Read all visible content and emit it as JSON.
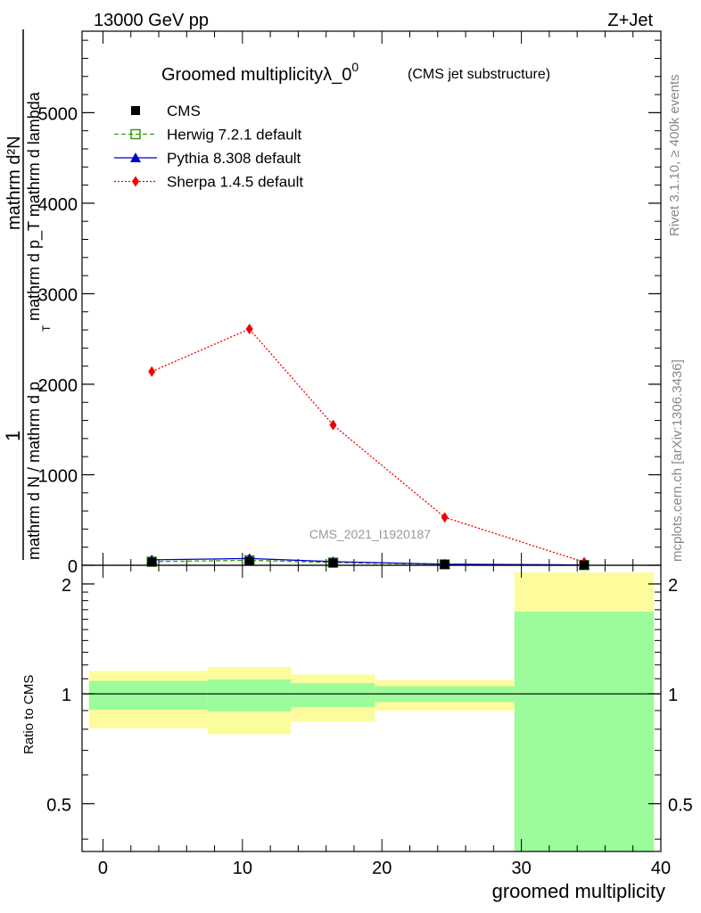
{
  "header": {
    "energy": "13000 GeV pp",
    "process": "Z+Jet",
    "title_main": "Groomed multiplicityλ_0",
    "title_sup": "0",
    "title_sub": "(CMS jet substructure)",
    "rivet_label": "Rivet 3.1.10, ≥ 400k events",
    "site_label": "mcplots.cern.ch [arXiv:1306.3436]",
    "watermark": "CMS_2021_I1920187"
  },
  "chart_data": [
    {
      "type": "scatter",
      "title": "Groomed multiplicityλ_0^0 (CMS jet substructure)",
      "ylabel_num": "1",
      "ylabel_den_top": "mathrm d N / mathrm d p_T",
      "ylabel_den_text": "mathrm d N / mathrm d p",
      "ylabel_den_sub": "T",
      "ylabel_num_text": "mathrm d²N",
      "ylabel_num_full": "mathrm d p_T mathrm d lambda",
      "ylim": [
        0,
        5900
      ],
      "yticks": [
        0,
        1000,
        2000,
        3000,
        4000,
        5000
      ],
      "yticklabels": [
        "0",
        "1000",
        "2000",
        "3000",
        "4000",
        "5000"
      ],
      "xlim": [
        -1.5,
        40
      ],
      "bins": [
        [
          -1,
          7.5
        ],
        [
          7.5,
          13.5
        ],
        [
          13.5,
          19.5
        ],
        [
          19.5,
          29.5
        ],
        [
          29.5,
          39.5
        ]
      ],
      "x": [
        3.5,
        10.5,
        16.5,
        24.5,
        34.5
      ],
      "series": [
        {
          "name": "CMS",
          "color": "#000000",
          "marker": "square-filled",
          "values": [
            35,
            45,
            25,
            10,
            2
          ]
        },
        {
          "name": "Herwig 7.2.1 default",
          "color": "#3a9a0a",
          "marker": "square-open",
          "line": "dashed",
          "values": [
            40,
            55,
            30,
            10,
            3
          ]
        },
        {
          "name": "Pythia 8.308 default",
          "color": "#0000cc",
          "marker": "triangle",
          "line": "solid",
          "values": [
            60,
            75,
            40,
            12,
            3
          ]
        },
        {
          "name": "Sherpa 1.4.5 default",
          "color": "#ee0000",
          "marker": "diamond",
          "line": "dotted",
          "values": [
            2140,
            2610,
            1550,
            530,
            35
          ],
          "errors": [
            40,
            50,
            30,
            20,
            8
          ]
        }
      ]
    },
    {
      "type": "band",
      "ylabel": "Ratio to CMS",
      "xlabel": "groomed multiplicity",
      "ylim": [
        0.37,
        2.25
      ],
      "yticks": [
        0.5,
        1,
        2
      ],
      "yticklabels": [
        "0.5",
        "1",
        "2"
      ],
      "xticks": [
        0,
        10,
        20,
        30,
        40
      ],
      "xticklabels": [
        "0",
        "10",
        "20",
        "30",
        "40"
      ],
      "reference": 1,
      "bands": [
        {
          "x0": -1,
          "x1": 7.5,
          "stat_lo": 0.905,
          "stat_hi": 1.085,
          "tot_lo": 0.805,
          "tot_hi": 1.155
        },
        {
          "x0": 7.5,
          "x1": 13.5,
          "stat_lo": 0.895,
          "stat_hi": 1.095,
          "tot_lo": 0.775,
          "tot_hi": 1.185
        },
        {
          "x0": 13.5,
          "x1": 19.5,
          "stat_lo": 0.92,
          "stat_hi": 1.07,
          "tot_lo": 0.84,
          "tot_hi": 1.13
        },
        {
          "x0": 19.5,
          "x1": 29.5,
          "stat_lo": 0.95,
          "stat_hi": 1.05,
          "tot_lo": 0.9,
          "tot_hi": 1.09
        },
        {
          "x0": 29.5,
          "x1": 39.5,
          "stat_lo": 0.37,
          "stat_hi": 1.68,
          "tot_lo": 0.37,
          "tot_hi": 2.15
        }
      ],
      "colors": {
        "stat": "#9cfc9c",
        "tot": "#fcfc9c"
      }
    }
  ]
}
